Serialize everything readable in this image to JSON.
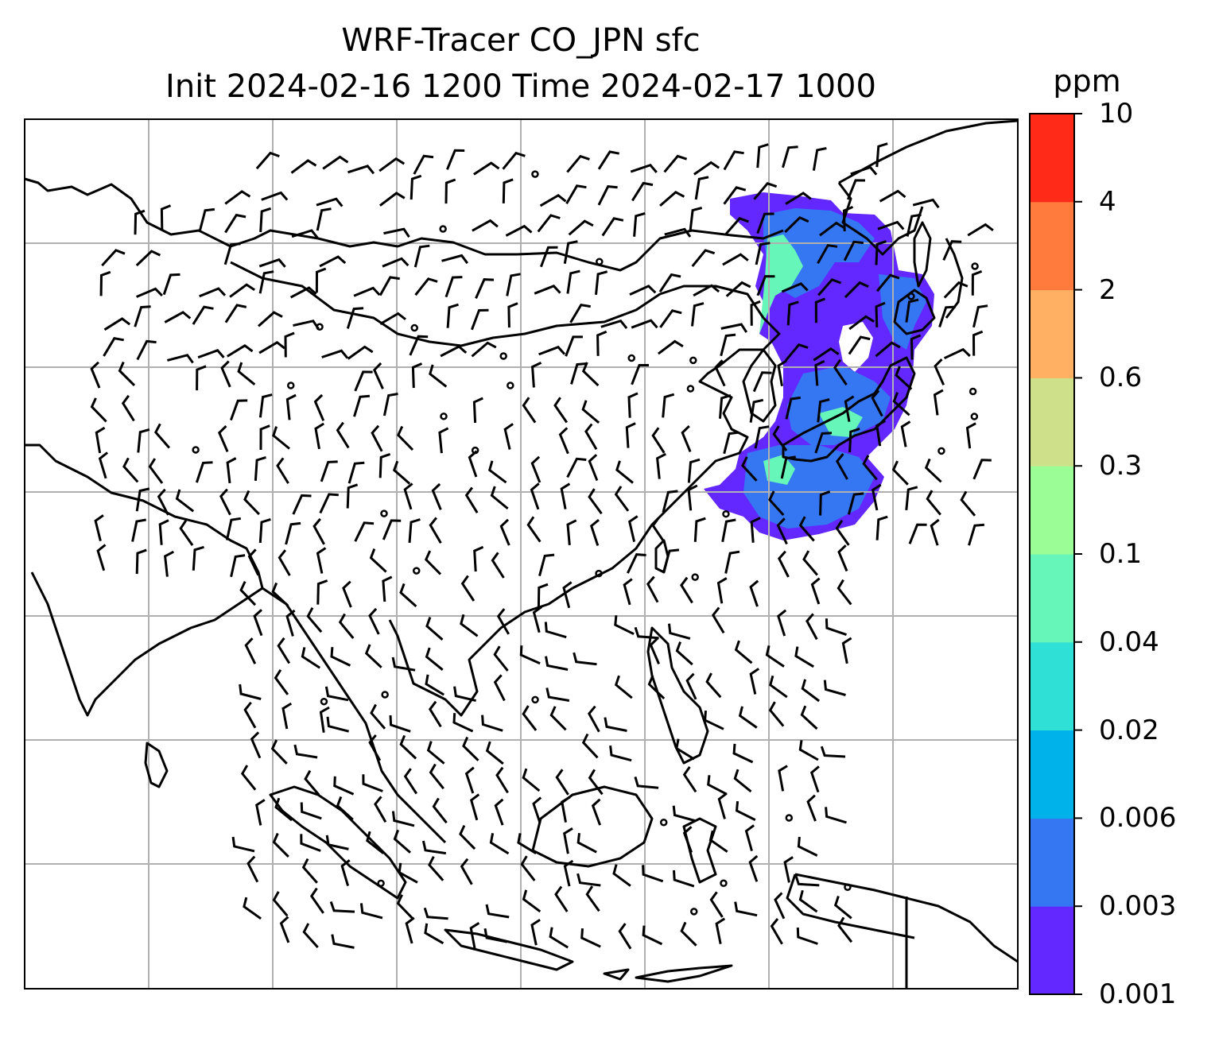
{
  "title": {
    "line1": "WRF-Tracer CO_JPN sfc",
    "line2": "Init 2024-02-16 1200 Time 2024-02-17 1000"
  },
  "colorbar": {
    "unit": "ppm",
    "levels": [
      "0.001",
      "0.003",
      "0.006",
      "0.02",
      "0.04",
      "0.1",
      "0.3",
      "0.6",
      "2",
      "4",
      "10"
    ],
    "colors": [
      "#6328ff",
      "#3576f2",
      "#00b2ea",
      "#2fe0d7",
      "#67f6b9",
      "#9afd95",
      "#cfe08a",
      "#ffb063",
      "#ff7a3c",
      "#ff2a17"
    ]
  },
  "map": {
    "field": "CO_JPN tracer concentration (surface)",
    "gridlines": true,
    "plume_color_low": "#6328ff",
    "plume_color_mid": "#3576f2",
    "plume_color_high": "#67f6b9",
    "overlay": "wind barbs"
  }
}
